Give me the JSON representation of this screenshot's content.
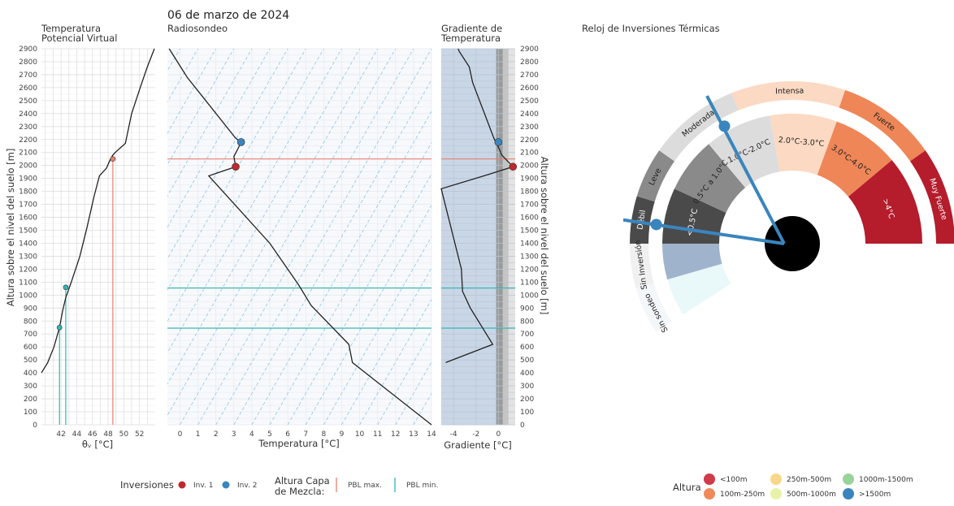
{
  "header": {
    "date": "06 de marzo de 2024",
    "panel1_title_line1": "Temperatura",
    "panel1_title_line2": "Potencial Virtual",
    "panel2_title": "Radiosondeo",
    "panel3_title_line1": "Gradiente de",
    "panel3_title_line2": "Temperatura",
    "clock_title": "Reloj de Inversiones Térmicas"
  },
  "axes": {
    "ylabel_left": "Altura sobre el nivel del suelo [m]",
    "ylabel_right": "Altura sobre el nivel del suelo [m]",
    "xlabel_theta": "θᵥ [°C]",
    "xlabel_temp": "Temperatura [°C]",
    "xlabel_grad": "Gradiente [°C]",
    "height_ticks": [
      "0",
      "100",
      "200",
      "300",
      "400",
      "500",
      "600",
      "700",
      "800",
      "900",
      "1000",
      "1100",
      "1200",
      "1300",
      "1400",
      "1500",
      "1600",
      "1700",
      "1800",
      "1900",
      "2000",
      "2100",
      "2200",
      "2300",
      "2400",
      "2500",
      "2600",
      "2700",
      "2800",
      "2900"
    ],
    "theta_ticks": [
      "42",
      "44",
      "46",
      "48",
      "50",
      "52"
    ],
    "temp_ticks": [
      "0",
      "1",
      "2",
      "3",
      "4",
      "5",
      "6",
      "7",
      "8",
      "9",
      "10",
      "11",
      "12",
      "13",
      "14"
    ],
    "grad_ticks": [
      "-4",
      "-2",
      "0"
    ]
  },
  "legend": {
    "inversions_title": "Inversiones",
    "inv1": "Inv. 1",
    "inv2": "Inv. 2",
    "mixing_title_line1": "Altura Capa",
    "mixing_title_line2": "de Mezcla:",
    "pbl_max": "PBL max.",
    "pbl_min": "PBL min.",
    "height_title": "Altura",
    "height_items": [
      {
        "label": "<100m",
        "color": "#d03a4a"
      },
      {
        "label": "100m-250m",
        "color": "#f08a5a"
      },
      {
        "label": "250m-500m",
        "color": "#f7d88a"
      },
      {
        "label": "500m-1000m",
        "color": "#e9f2a8"
      },
      {
        "label": "1000m-1500m",
        "color": "#98d49a"
      },
      {
        "label": ">1500m",
        "color": "#3a85bd"
      }
    ]
  },
  "clock": {
    "outer_labels": [
      "Sin sondeo",
      "Sin Inversión",
      "Débil",
      "Leve",
      "Moderada",
      "Intensa",
      "Fuerte",
      "Muy Fuerte"
    ],
    "inner_labels": [
      "<0.5°C",
      "0.5°C a 1.0°C",
      "1.0°C-2.0°C",
      "2.0°C-3.0°C",
      "3.0°C-4.0°C",
      ">4°C"
    ],
    "inv1_category": "Débil",
    "inv2_category": "Moderada"
  },
  "chart_data": [
    {
      "type": "line",
      "panel": "Temperatura Potencial Virtual",
      "xlabel": "θᵥ [°C]",
      "ylabel": "Altura sobre el nivel del suelo [m]",
      "xlim": [
        39.5,
        54
      ],
      "ylim": [
        0,
        2900
      ],
      "series": [
        {
          "x": [
            39.5,
            40.3,
            41.1,
            41.8,
            42.2,
            42.6,
            43.3,
            44.4,
            45.3,
            46.2,
            46.9,
            47.8,
            48.3,
            48.6,
            48.9,
            50.2,
            51.0,
            52.2,
            53.0,
            53.9
          ],
          "y": [
            400,
            480,
            600,
            750,
            880,
            980,
            1100,
            1300,
            1520,
            1760,
            1920,
            1980,
            2050,
            2080,
            2100,
            2170,
            2400,
            2620,
            2760,
            2900
          ]
        }
      ],
      "markers": [
        {
          "name": "Inv. 1",
          "x": 48.6,
          "y": 2050,
          "color": "#e8806f"
        },
        {
          "name": "Inv. 2",
          "x": 42.6,
          "y": 1060,
          "color": "#2fb8b8"
        },
        {
          "name": "",
          "x": 41.8,
          "y": 750,
          "color": "#2fb8b8"
        }
      ],
      "vlines": [
        {
          "name": "PBL max.",
          "x": 48.6,
          "from": 0,
          "to": 2050,
          "color": "#e8806f"
        },
        {
          "name": "PBL min.",
          "x": 41.8,
          "from": 0,
          "to": 750,
          "color": "#2fb8b8"
        },
        {
          "name": "PBL min.",
          "x": 42.6,
          "from": 0,
          "to": 1060,
          "color": "#2fb8b8"
        }
      ]
    },
    {
      "type": "line",
      "panel": "Radiosondeo",
      "xlabel": "Temperatura [°C]",
      "ylabel": "",
      "xlim": [
        -0.7,
        14
      ],
      "ylim": [
        0,
        2900
      ],
      "series": [
        {
          "x": [
            14,
            9.6,
            9.5,
            9.4,
            7.3,
            6.6,
            5.0,
            1.6,
            3.1,
            3.0,
            3.2,
            3.4,
            3.1,
            0.4,
            -0.6
          ],
          "y": [
            0,
            480,
            550,
            620,
            920,
            1080,
            1400,
            1920,
            1990,
            2070,
            2120,
            2180,
            2210,
            2680,
            2900
          ]
        }
      ],
      "markers": [
        {
          "name": "Inv. 1",
          "x": 3.1,
          "y": 1990,
          "color": "#c0282d"
        },
        {
          "name": "Inv. 2",
          "x": 3.4,
          "y": 2180,
          "color": "#3a85bd"
        }
      ],
      "hlines": [
        {
          "name": "PBL max.",
          "y": 2050,
          "color": "#e8806f"
        },
        {
          "name": "PBL min.",
          "y": 1055,
          "color": "#2fb8b8"
        },
        {
          "name": "PBL min.",
          "y": 745,
          "color": "#2fb8b8"
        }
      ]
    },
    {
      "type": "line",
      "panel": "Gradiente de Temperatura",
      "xlabel": "Gradiente [°C]",
      "ylabel": "Altura sobre el nivel del suelo [m]",
      "xlim": [
        -5.1,
        1.5
      ],
      "ylim": [
        0,
        2900
      ],
      "series": [
        {
          "x": [
            -4.7,
            -0.5,
            -2.5,
            -3.2,
            -3.3,
            -5.1,
            -0.9,
            1.3,
            0.3,
            0.0,
            -0.4,
            -2.3,
            -2.6,
            -3.5,
            -3.6
          ],
          "y": [
            480,
            620,
            900,
            1030,
            1200,
            1820,
            1930,
            1990,
            2080,
            2140,
            2210,
            2640,
            2760,
            2880,
            2900
          ]
        }
      ],
      "markers": [
        {
          "name": "Inv. 1",
          "x": 1.3,
          "y": 1990,
          "color": "#c0282d"
        },
        {
          "name": "Inv. 2",
          "x": 0.0,
          "y": 2180,
          "color": "#3a85bd"
        }
      ],
      "hlines": [
        {
          "name": "PBL max.",
          "y": 2050,
          "color": "#e8806f"
        },
        {
          "name": "PBL min.",
          "y": 1055,
          "color": "#2fb8b8"
        },
        {
          "name": "PBL min.",
          "y": 745,
          "color": "#2fb8b8"
        }
      ]
    }
  ]
}
